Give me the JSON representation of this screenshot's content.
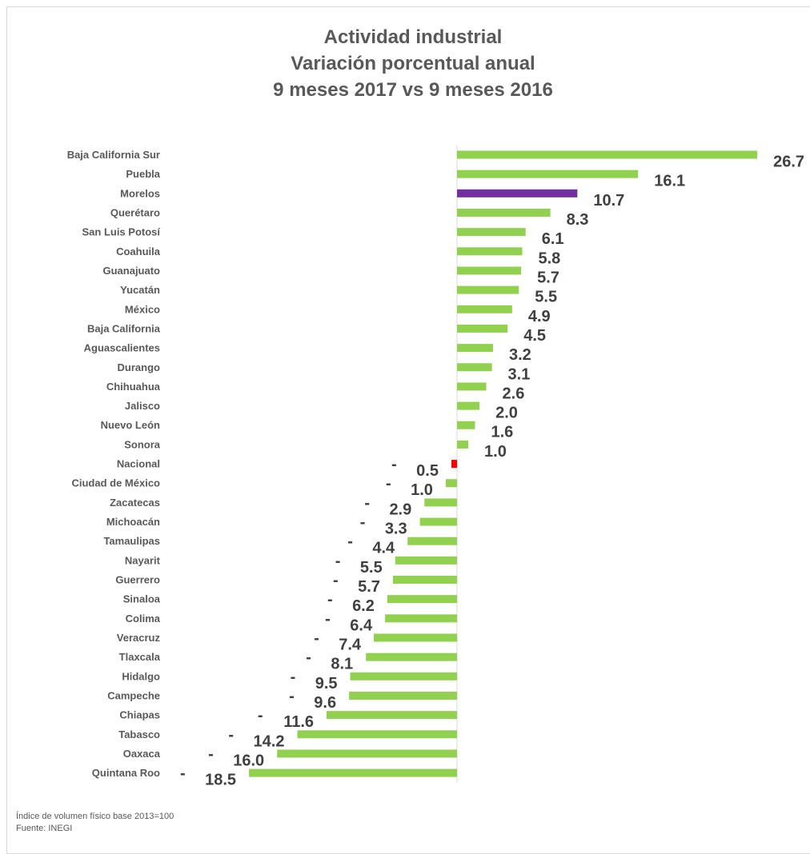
{
  "title_lines": [
    "Actividad industrial",
    "Variación porcentual anual",
    "9 meses 2017 vs 9 meses 2016"
  ],
  "footnotes": [
    "Índice de volumen físico base 2013=100",
    "Fuente: INEGI"
  ],
  "colors": {
    "default": "#92d050",
    "highlight": "#7030a0",
    "national": "#ff0000",
    "label": "#404040",
    "category": "#595959",
    "axis": "#d9d9d9"
  },
  "chart_data": {
    "type": "bar",
    "orientation": "horizontal",
    "title": "Actividad industrial\nVariación porcentual anual\n9 meses 2017 vs 9 meses 2016",
    "categories": [
      "Baja California Sur",
      "Puebla",
      "Morelos",
      "Querétaro",
      "San Luis Potosí",
      "Coahuila",
      "Guanajuato",
      "Yucatán",
      "México",
      "Baja California",
      "Aguascalientes",
      "Durango",
      "Chihuahua",
      "Jalisco",
      "Nuevo León",
      "Sonora",
      "Nacional",
      "Ciudad de México",
      "Zacatecas",
      "Michoacán",
      "Tamaulipas",
      "Nayarit",
      "Guerrero",
      "Sinaloa",
      "Colima",
      "Veracruz",
      "Tlaxcala",
      "Hidalgo",
      "Campeche",
      "Chiapas",
      "Tabasco",
      "Oaxaca",
      "Quintana Roo"
    ],
    "values": [
      26.7,
      16.1,
      10.7,
      8.3,
      6.1,
      5.8,
      5.7,
      5.5,
      4.9,
      4.5,
      3.2,
      3.1,
      2.6,
      2.0,
      1.6,
      1.0,
      -0.5,
      -1.0,
      -2.9,
      -3.3,
      -4.4,
      -5.5,
      -5.7,
      -6.2,
      -6.4,
      -7.4,
      -8.1,
      -9.5,
      -9.6,
      -11.6,
      -14.2,
      -16.0,
      -18.5
    ],
    "labels": [
      "26.7",
      "16.1",
      "10.7",
      "8.3",
      "6.1",
      "5.8",
      "5.7",
      "5.5",
      "4.9",
      "4.5",
      "3.2",
      "3.1",
      "2.6",
      "2.0",
      "1.6",
      "1.0",
      "0.5",
      "1.0",
      "2.9",
      "3.3",
      "4.4",
      "5.5",
      "5.7",
      "6.2",
      "6.4",
      "7.4",
      "8.1",
      "9.5",
      "9.6",
      "11.6",
      "14.2",
      "16.0",
      "18.5"
    ],
    "negative_prefix": "-",
    "highlight": {
      "Morelos": "highlight",
      "Nacional": "national"
    }
  }
}
